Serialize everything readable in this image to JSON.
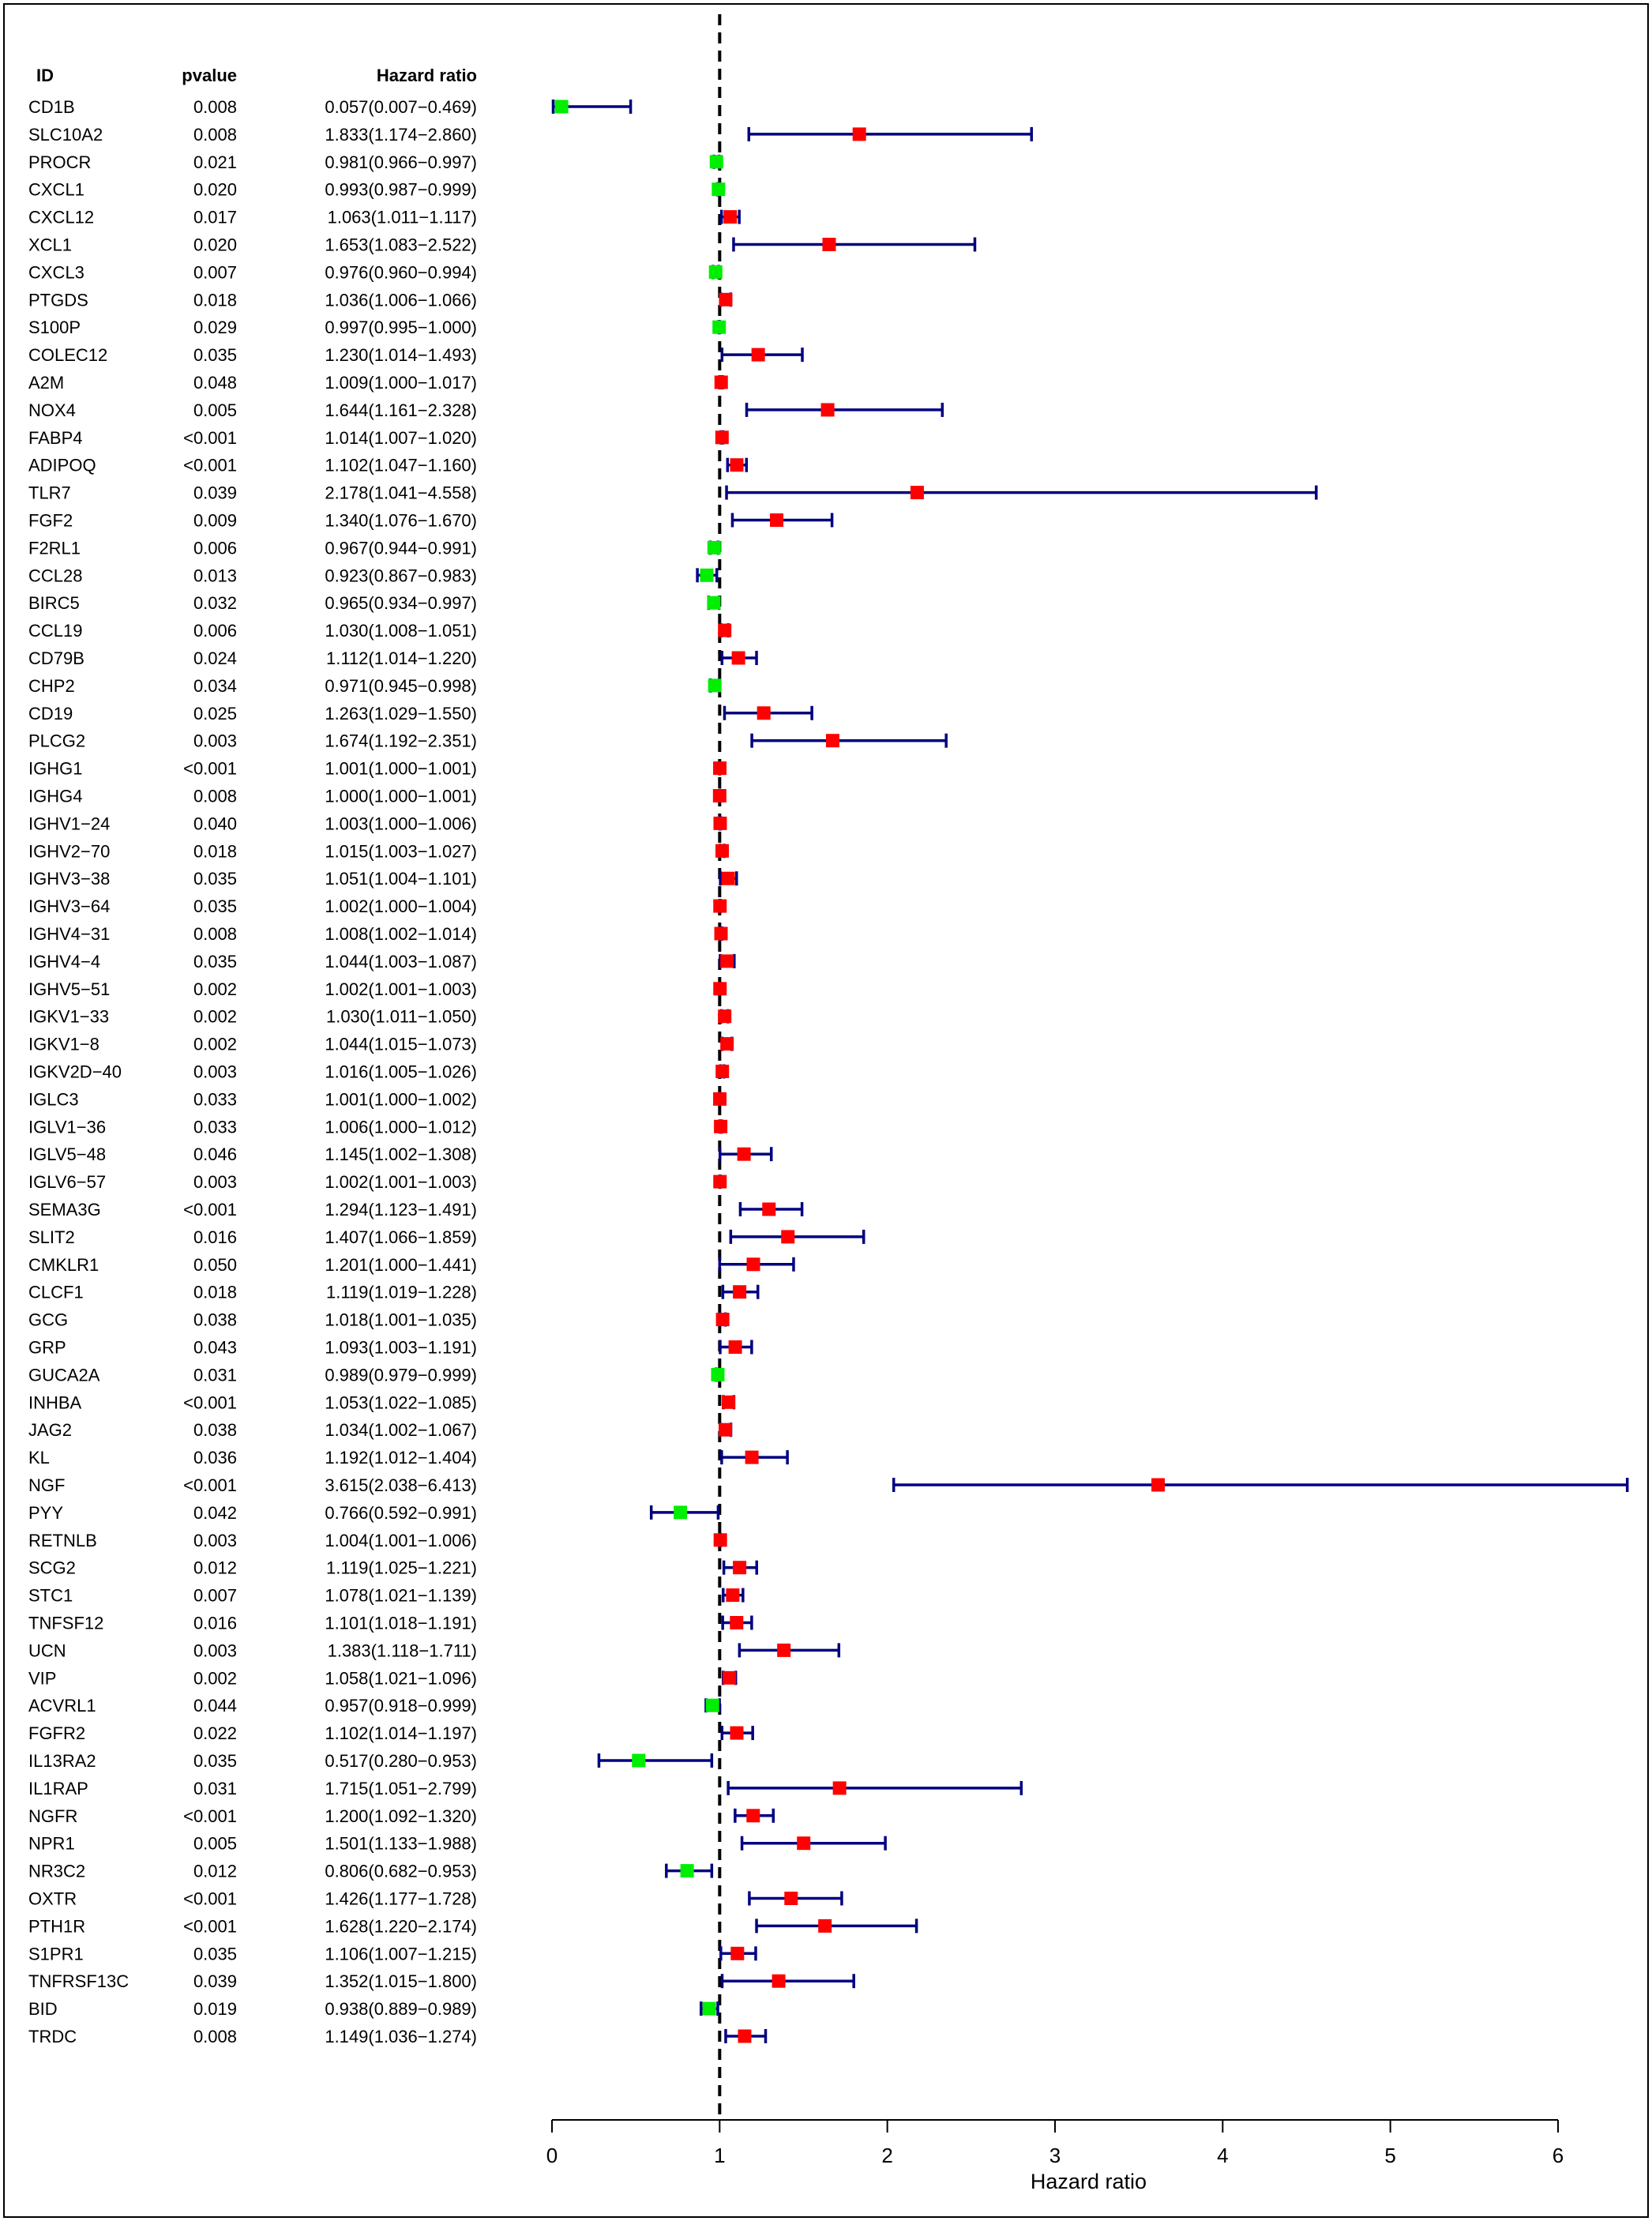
{
  "chart_data": {
    "type": "forest",
    "columns": {
      "id": "ID",
      "pvalue": "pvalue",
      "hr": "Hazard ratio"
    },
    "xlabel": "Hazard ratio",
    "xlim": [
      0,
      6
    ],
    "xticks": [
      0,
      1,
      2,
      3,
      4,
      5,
      6
    ],
    "reference_line": 1,
    "colors": {
      "risk": "#ff0000",
      "protective": "#00ee00",
      "ci": "#000080",
      "frame": "#000000"
    },
    "rows": [
      {
        "id": "CD1B",
        "p": "0.008",
        "hr": 0.057,
        "lo": 0.007,
        "hi": 0.469,
        "label": "0.057(0.007−0.469)"
      },
      {
        "id": "SLC10A2",
        "p": "0.008",
        "hr": 1.833,
        "lo": 1.174,
        "hi": 2.86,
        "label": "1.833(1.174−2.860)"
      },
      {
        "id": "PROCR",
        "p": "0.021",
        "hr": 0.981,
        "lo": 0.966,
        "hi": 0.997,
        "label": "0.981(0.966−0.997)"
      },
      {
        "id": "CXCL1",
        "p": "0.020",
        "hr": 0.993,
        "lo": 0.987,
        "hi": 0.999,
        "label": "0.993(0.987−0.999)"
      },
      {
        "id": "CXCL12",
        "p": "0.017",
        "hr": 1.063,
        "lo": 1.011,
        "hi": 1.117,
        "label": "1.063(1.011−1.117)"
      },
      {
        "id": "XCL1",
        "p": "0.020",
        "hr": 1.653,
        "lo": 1.083,
        "hi": 2.522,
        "label": "1.653(1.083−2.522)"
      },
      {
        "id": "CXCL3",
        "p": "0.007",
        "hr": 0.976,
        "lo": 0.96,
        "hi": 0.994,
        "label": "0.976(0.960−0.994)"
      },
      {
        "id": "PTGDS",
        "p": "0.018",
        "hr": 1.036,
        "lo": 1.006,
        "hi": 1.066,
        "label": "1.036(1.006−1.066)"
      },
      {
        "id": "S100P",
        "p": "0.029",
        "hr": 0.997,
        "lo": 0.995,
        "hi": 1.0,
        "label": "0.997(0.995−1.000)"
      },
      {
        "id": "COLEC12",
        "p": "0.035",
        "hr": 1.23,
        "lo": 1.014,
        "hi": 1.493,
        "label": "1.230(1.014−1.493)"
      },
      {
        "id": "A2M",
        "p": "0.048",
        "hr": 1.009,
        "lo": 1.0,
        "hi": 1.017,
        "label": "1.009(1.000−1.017)"
      },
      {
        "id": "NOX4",
        "p": "0.005",
        "hr": 1.644,
        "lo": 1.161,
        "hi": 2.328,
        "label": "1.644(1.161−2.328)"
      },
      {
        "id": "FABP4",
        "p": "<0.001",
        "hr": 1.014,
        "lo": 1.007,
        "hi": 1.02,
        "label": "1.014(1.007−1.020)"
      },
      {
        "id": "ADIPOQ",
        "p": "<0.001",
        "hr": 1.102,
        "lo": 1.047,
        "hi": 1.16,
        "label": "1.102(1.047−1.160)"
      },
      {
        "id": "TLR7",
        "p": "0.039",
        "hr": 2.178,
        "lo": 1.041,
        "hi": 4.558,
        "label": "2.178(1.041−4.558)"
      },
      {
        "id": "FGF2",
        "p": "0.009",
        "hr": 1.34,
        "lo": 1.076,
        "hi": 1.67,
        "label": "1.340(1.076−1.670)"
      },
      {
        "id": "F2RL1",
        "p": "0.006",
        "hr": 0.967,
        "lo": 0.944,
        "hi": 0.991,
        "label": "0.967(0.944−0.991)"
      },
      {
        "id": "CCL28",
        "p": "0.013",
        "hr": 0.923,
        "lo": 0.867,
        "hi": 0.983,
        "label": "0.923(0.867−0.983)"
      },
      {
        "id": "BIRC5",
        "p": "0.032",
        "hr": 0.965,
        "lo": 0.934,
        "hi": 0.997,
        "label": "0.965(0.934−0.997)"
      },
      {
        "id": "CCL19",
        "p": "0.006",
        "hr": 1.03,
        "lo": 1.008,
        "hi": 1.051,
        "label": "1.030(1.008−1.051)"
      },
      {
        "id": "CD79B",
        "p": "0.024",
        "hr": 1.112,
        "lo": 1.014,
        "hi": 1.22,
        "label": "1.112(1.014−1.220)"
      },
      {
        "id": "CHP2",
        "p": "0.034",
        "hr": 0.971,
        "lo": 0.945,
        "hi": 0.998,
        "label": "0.971(0.945−0.998)"
      },
      {
        "id": "CD19",
        "p": "0.025",
        "hr": 1.263,
        "lo": 1.029,
        "hi": 1.55,
        "label": "1.263(1.029−1.550)"
      },
      {
        "id": "PLCG2",
        "p": "0.003",
        "hr": 1.674,
        "lo": 1.192,
        "hi": 2.351,
        "label": "1.674(1.192−2.351)"
      },
      {
        "id": "IGHG1",
        "p": "<0.001",
        "hr": 1.001,
        "lo": 1.0,
        "hi": 1.001,
        "label": "1.001(1.000−1.001)"
      },
      {
        "id": "IGHG4",
        "p": "0.008",
        "hr": 1.0,
        "lo": 1.0,
        "hi": 1.001,
        "label": "1.000(1.000−1.001)"
      },
      {
        "id": "IGHV1−24",
        "p": "0.040",
        "hr": 1.003,
        "lo": 1.0,
        "hi": 1.006,
        "label": "1.003(1.000−1.006)"
      },
      {
        "id": "IGHV2−70",
        "p": "0.018",
        "hr": 1.015,
        "lo": 1.003,
        "hi": 1.027,
        "label": "1.015(1.003−1.027)"
      },
      {
        "id": "IGHV3−38",
        "p": "0.035",
        "hr": 1.051,
        "lo": 1.004,
        "hi": 1.101,
        "label": "1.051(1.004−1.101)"
      },
      {
        "id": "IGHV3−64",
        "p": "0.035",
        "hr": 1.002,
        "lo": 1.0,
        "hi": 1.004,
        "label": "1.002(1.000−1.004)"
      },
      {
        "id": "IGHV4−31",
        "p": "0.008",
        "hr": 1.008,
        "lo": 1.002,
        "hi": 1.014,
        "label": "1.008(1.002−1.014)"
      },
      {
        "id": "IGHV4−4",
        "p": "0.035",
        "hr": 1.044,
        "lo": 1.003,
        "hi": 1.087,
        "label": "1.044(1.003−1.087)"
      },
      {
        "id": "IGHV5−51",
        "p": "0.002",
        "hr": 1.002,
        "lo": 1.001,
        "hi": 1.003,
        "label": "1.002(1.001−1.003)"
      },
      {
        "id": "IGKV1−33",
        "p": "0.002",
        "hr": 1.03,
        "lo": 1.011,
        "hi": 1.05,
        "label": "1.030(1.011−1.050)"
      },
      {
        "id": "IGKV1−8",
        "p": "0.002",
        "hr": 1.044,
        "lo": 1.015,
        "hi": 1.073,
        "label": "1.044(1.015−1.073)"
      },
      {
        "id": "IGKV2D−40",
        "p": "0.003",
        "hr": 1.016,
        "lo": 1.005,
        "hi": 1.026,
        "label": "1.016(1.005−1.026)"
      },
      {
        "id": "IGLC3",
        "p": "0.033",
        "hr": 1.001,
        "lo": 1.0,
        "hi": 1.002,
        "label": "1.001(1.000−1.002)"
      },
      {
        "id": "IGLV1−36",
        "p": "0.033",
        "hr": 1.006,
        "lo": 1.0,
        "hi": 1.012,
        "label": "1.006(1.000−1.012)"
      },
      {
        "id": "IGLV5−48",
        "p": "0.046",
        "hr": 1.145,
        "lo": 1.002,
        "hi": 1.308,
        "label": "1.145(1.002−1.308)"
      },
      {
        "id": "IGLV6−57",
        "p": "0.003",
        "hr": 1.002,
        "lo": 1.001,
        "hi": 1.003,
        "label": "1.002(1.001−1.003)"
      },
      {
        "id": "SEMA3G",
        "p": "<0.001",
        "hr": 1.294,
        "lo": 1.123,
        "hi": 1.491,
        "label": "1.294(1.123−1.491)"
      },
      {
        "id": "SLIT2",
        "p": "0.016",
        "hr": 1.407,
        "lo": 1.066,
        "hi": 1.859,
        "label": "1.407(1.066−1.859)"
      },
      {
        "id": "CMKLR1",
        "p": "0.050",
        "hr": 1.201,
        "lo": 1.0,
        "hi": 1.441,
        "label": "1.201(1.000−1.441)"
      },
      {
        "id": "CLCF1",
        "p": "0.018",
        "hr": 1.119,
        "lo": 1.019,
        "hi": 1.228,
        "label": "1.119(1.019−1.228)"
      },
      {
        "id": "GCG",
        "p": "0.038",
        "hr": 1.018,
        "lo": 1.001,
        "hi": 1.035,
        "label": "1.018(1.001−1.035)"
      },
      {
        "id": "GRP",
        "p": "0.043",
        "hr": 1.093,
        "lo": 1.003,
        "hi": 1.191,
        "label": "1.093(1.003−1.191)"
      },
      {
        "id": "GUCA2A",
        "p": "0.031",
        "hr": 0.989,
        "lo": 0.979,
        "hi": 0.999,
        "label": "0.989(0.979−0.999)"
      },
      {
        "id": "INHBA",
        "p": "<0.001",
        "hr": 1.053,
        "lo": 1.022,
        "hi": 1.085,
        "label": "1.053(1.022−1.085)"
      },
      {
        "id": "JAG2",
        "p": "0.038",
        "hr": 1.034,
        "lo": 1.002,
        "hi": 1.067,
        "label": "1.034(1.002−1.067)"
      },
      {
        "id": "KL",
        "p": "0.036",
        "hr": 1.192,
        "lo": 1.012,
        "hi": 1.404,
        "label": "1.192(1.012−1.404)"
      },
      {
        "id": "NGF",
        "p": "<0.001",
        "hr": 3.615,
        "lo": 2.038,
        "hi": 6.413,
        "label": "3.615(2.038−6.413)"
      },
      {
        "id": "PYY",
        "p": "0.042",
        "hr": 0.766,
        "lo": 0.592,
        "hi": 0.991,
        "label": "0.766(0.592−0.991)"
      },
      {
        "id": "RETNLB",
        "p": "0.003",
        "hr": 1.004,
        "lo": 1.001,
        "hi": 1.006,
        "label": "1.004(1.001−1.006)"
      },
      {
        "id": "SCG2",
        "p": "0.012",
        "hr": 1.119,
        "lo": 1.025,
        "hi": 1.221,
        "label": "1.119(1.025−1.221)"
      },
      {
        "id": "STC1",
        "p": "0.007",
        "hr": 1.078,
        "lo": 1.021,
        "hi": 1.139,
        "label": "1.078(1.021−1.139)"
      },
      {
        "id": "TNFSF12",
        "p": "0.016",
        "hr": 1.101,
        "lo": 1.018,
        "hi": 1.191,
        "label": "1.101(1.018−1.191)"
      },
      {
        "id": "UCN",
        "p": "0.003",
        "hr": 1.383,
        "lo": 1.118,
        "hi": 1.711,
        "label": "1.383(1.118−1.711)"
      },
      {
        "id": "VIP",
        "p": "0.002",
        "hr": 1.058,
        "lo": 1.021,
        "hi": 1.096,
        "label": "1.058(1.021−1.096)"
      },
      {
        "id": "ACVRL1",
        "p": "0.044",
        "hr": 0.957,
        "lo": 0.918,
        "hi": 0.999,
        "label": "0.957(0.918−0.999)"
      },
      {
        "id": "FGFR2",
        "p": "0.022",
        "hr": 1.102,
        "lo": 1.014,
        "hi": 1.197,
        "label": "1.102(1.014−1.197)"
      },
      {
        "id": "IL13RA2",
        "p": "0.035",
        "hr": 0.517,
        "lo": 0.28,
        "hi": 0.953,
        "label": "0.517(0.280−0.953)"
      },
      {
        "id": "IL1RAP",
        "p": "0.031",
        "hr": 1.715,
        "lo": 1.051,
        "hi": 2.799,
        "label": "1.715(1.051−2.799)"
      },
      {
        "id": "NGFR",
        "p": "<0.001",
        "hr": 1.2,
        "lo": 1.092,
        "hi": 1.32,
        "label": "1.200(1.092−1.320)"
      },
      {
        "id": "NPR1",
        "p": "0.005",
        "hr": 1.501,
        "lo": 1.133,
        "hi": 1.988,
        "label": "1.501(1.133−1.988)"
      },
      {
        "id": "NR3C2",
        "p": "0.012",
        "hr": 0.806,
        "lo": 0.682,
        "hi": 0.953,
        "label": "0.806(0.682−0.953)"
      },
      {
        "id": "OXTR",
        "p": "<0.001",
        "hr": 1.426,
        "lo": 1.177,
        "hi": 1.728,
        "label": "1.426(1.177−1.728)"
      },
      {
        "id": "PTH1R",
        "p": "<0.001",
        "hr": 1.628,
        "lo": 1.22,
        "hi": 2.174,
        "label": "1.628(1.220−2.174)"
      },
      {
        "id": "S1PR1",
        "p": "0.035",
        "hr": 1.106,
        "lo": 1.007,
        "hi": 1.215,
        "label": "1.106(1.007−1.215)"
      },
      {
        "id": "TNFRSF13C",
        "p": "0.039",
        "hr": 1.352,
        "lo": 1.015,
        "hi": 1.8,
        "label": "1.352(1.015−1.800)"
      },
      {
        "id": "BID",
        "p": "0.019",
        "hr": 0.938,
        "lo": 0.889,
        "hi": 0.989,
        "label": "0.938(0.889−0.989)"
      },
      {
        "id": "TRDC",
        "p": "0.008",
        "hr": 1.149,
        "lo": 1.036,
        "hi": 1.274,
        "label": "1.149(1.036−1.274)"
      }
    ]
  }
}
